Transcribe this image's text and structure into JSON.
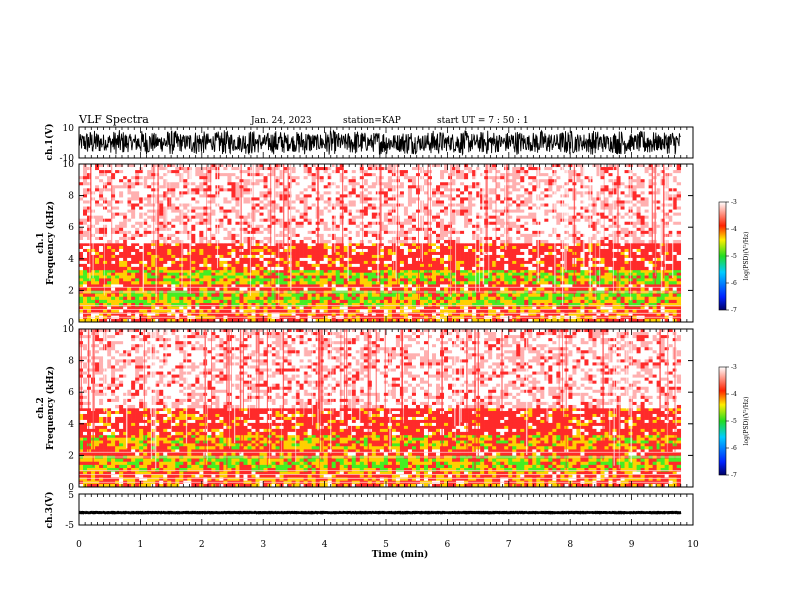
{
  "header": {
    "title": "VLF Spectra",
    "date": "Jan. 24, 2023",
    "station": "station=KAP",
    "start": "start UT =  7 : 50 : 1"
  },
  "colors": {
    "waveform": "#000000",
    "spec_bg": "#fde3e3",
    "spec_red": "#ff2a2a",
    "spec_yellow": "#ffd000",
    "spec_green": "#44ee22",
    "colorbar": [
      "#000066",
      "#0022ff",
      "#00ccff",
      "#22dd22",
      "#ffee00",
      "#ff2200",
      "#ffffff"
    ]
  },
  "chart_data": [
    {
      "type": "line",
      "name": "ch1-waveform",
      "ylabel": "ch.1(V)",
      "ylim": [
        -10,
        10
      ],
      "yticks": [
        "10",
        "-10"
      ],
      "x_range_min": [
        0,
        9.8
      ],
      "description_series": "noisy broadband waveform, amplitude roughly +/-8 V"
    },
    {
      "type": "heatmap",
      "name": "ch1-spectrogram",
      "ylabel": "ch.1\nFrequency (kHz)",
      "ylim": [
        0,
        10
      ],
      "yticks": [
        "0",
        "2",
        "4",
        "6",
        "8",
        "10"
      ],
      "bands_khz": [
        {
          "range": [
            0,
            1.0
          ],
          "level": "red-yellow"
        },
        {
          "range": [
            1.0,
            2.0
          ],
          "level": "green-yellow"
        },
        {
          "range": [
            2.0,
            2.4
          ],
          "level": "red"
        },
        {
          "range": [
            2.4,
            3.3
          ],
          "level": "green-yellow"
        },
        {
          "range": [
            3.3,
            5.0
          ],
          "level": "red"
        },
        {
          "range": [
            5.0,
            10.0
          ],
          "level": "light-red"
        }
      ],
      "colorbar": {
        "label": "log(PSD)(V²/Hz)",
        "ticks": [
          "-3",
          "-4",
          "-5",
          "-6",
          "-7"
        ],
        "range": [
          -7,
          -3
        ]
      }
    },
    {
      "type": "heatmap",
      "name": "ch2-spectrogram",
      "ylabel": "ch.2\nFrequency (kHz)",
      "ylim": [
        0,
        10
      ],
      "yticks": [
        "0",
        "2",
        "4",
        "6",
        "8",
        "10"
      ],
      "bands_khz": [
        {
          "range": [
            0,
            1.0
          ],
          "level": "red-yellow"
        },
        {
          "range": [
            1.0,
            2.0
          ],
          "level": "green-yellow"
        },
        {
          "range": [
            2.0,
            2.4
          ],
          "level": "red"
        },
        {
          "range": [
            2.4,
            3.3
          ],
          "level": "yellow-red"
        },
        {
          "range": [
            3.3,
            5.0
          ],
          "level": "red"
        },
        {
          "range": [
            5.0,
            10.0
          ],
          "level": "light-red"
        }
      ],
      "colorbar": {
        "label": "log(PSD)(V²/Hz)",
        "ticks": [
          "-3",
          "-4",
          "-5",
          "-6",
          "-7"
        ],
        "range": [
          -7,
          -3
        ]
      }
    },
    {
      "type": "line",
      "name": "ch3-waveform",
      "ylabel": "ch.3(V)",
      "ylim": [
        -5,
        5
      ],
      "yticks": [
        "5",
        "-5"
      ],
      "description_series": "steady band around -1 V, amplitude about +/-0.4 V"
    }
  ],
  "xaxis": {
    "label": "Time (min)",
    "ticks": [
      "0",
      "1",
      "2",
      "3",
      "4",
      "5",
      "6",
      "7",
      "8",
      "9",
      "10"
    ],
    "xlim": [
      0,
      10
    ],
    "data_end": 9.8
  }
}
